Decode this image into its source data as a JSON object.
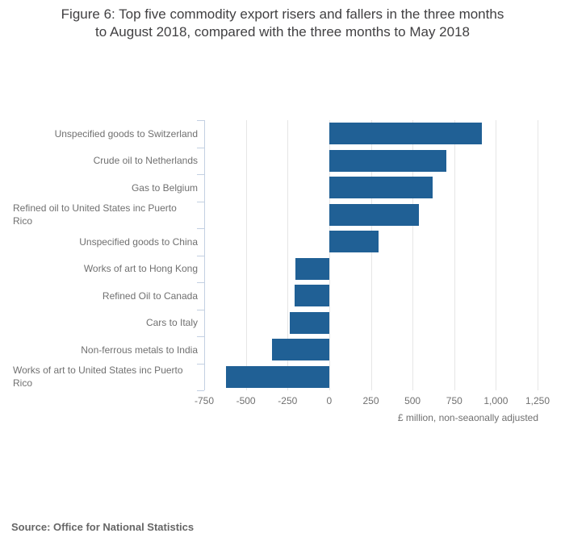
{
  "title": {
    "lines": [
      "Figure 6: Top five commodity export risers and fallers in the three months",
      "to August 2018, compared with the three months to May 2018"
    ]
  },
  "chart_data": {
    "type": "bar",
    "orientation": "horizontal",
    "title": "Figure 6: Top five commodity export risers and fallers in the three months to August 2018, compared with the three months to May 2018",
    "categories": [
      "Unspecified goods to Switzerland",
      "Crude oil to Netherlands",
      "Gas to Belgium",
      "Refined oil to United States inc Puerto Rico",
      "Unspecified goods to China",
      "Works of art to Hong Kong",
      "Refined Oil to Canada",
      "Cars to Italy",
      "Non-ferrous metals to India",
      "Works of art to United States inc Puerto Rico"
    ],
    "values": [
      915,
      705,
      620,
      540,
      295,
      -205,
      -210,
      -235,
      -345,
      -620
    ],
    "xlabel": "£ million, non-seaonally adjusted",
    "ylabel": "",
    "xlim": [
      -750,
      1250
    ],
    "xtick_values": [
      -750,
      -500,
      -250,
      0,
      250,
      500,
      750,
      1000,
      1250
    ],
    "xtick_labels": [
      "-750",
      "-500",
      "-250",
      "0",
      "250",
      "500",
      "750",
      "1,000",
      "1,250"
    ],
    "grid": true,
    "legend": "none",
    "colors": {
      "bar": "#206095",
      "axis": "#c3d0e2",
      "gridline": "#e6e6e6",
      "label_text": "#707070",
      "title_text": "#414042",
      "source_text": "#666666"
    }
  },
  "source": "Source: Office for National Statistics"
}
